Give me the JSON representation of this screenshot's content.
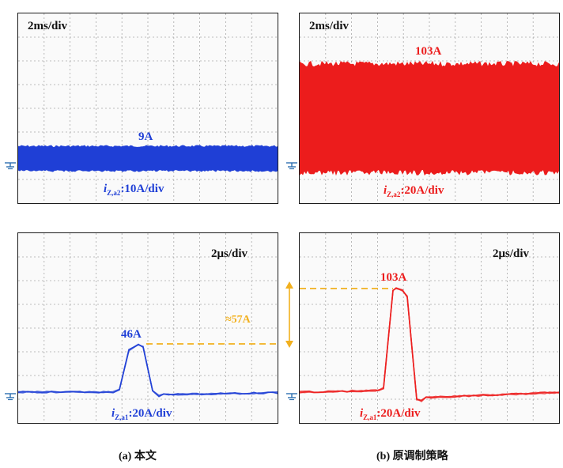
{
  "captions": {
    "a": "(a) 本文",
    "b": "(b) 原调制策略"
  },
  "chart_data": [
    {
      "type": "line",
      "panel": "top-left",
      "timebase": "2ms/div",
      "channel_label": "i",
      "channel_sub": "Z,a2",
      "channel_scale": ":10A/div",
      "peak_label": "9A",
      "peak_value": 9,
      "units": "A",
      "signal": "band",
      "grid": true,
      "color": "#1f3fd6"
    },
    {
      "type": "line",
      "panel": "top-right",
      "timebase": "2ms/div",
      "channel_label": "i",
      "channel_sub": "Z,a2",
      "channel_scale": ":20A/div",
      "peak_label": "103A",
      "peak_value": 103,
      "units": "A",
      "signal": "band",
      "grid": true,
      "color": "#ec1c1c"
    },
    {
      "type": "line",
      "panel": "bottom-left",
      "timebase": "2μs/div",
      "channel_label": "i",
      "channel_sub": "Z,a1",
      "channel_scale": ":20A/div",
      "peak_label": "46A",
      "peak_value": 46,
      "delta_label": "≈57A",
      "delta_value": 57,
      "units": "A",
      "signal": "pulse",
      "grid": true,
      "color": "#1f3fd6"
    },
    {
      "type": "line",
      "panel": "bottom-right",
      "timebase": "2μs/div",
      "channel_label": "i",
      "channel_sub": "Z,a1",
      "channel_scale": ":20A/div",
      "peak_label": "103A",
      "peak_value": 103,
      "units": "A",
      "signal": "pulse",
      "grid": true,
      "color": "#ec1c1c"
    }
  ],
  "colors": {
    "blue": "#1f3fd6",
    "red": "#ec1c1c",
    "annotation": "#f2b01e",
    "grid": "#9a9a9a",
    "ground_icon": "#2c6fb0"
  }
}
